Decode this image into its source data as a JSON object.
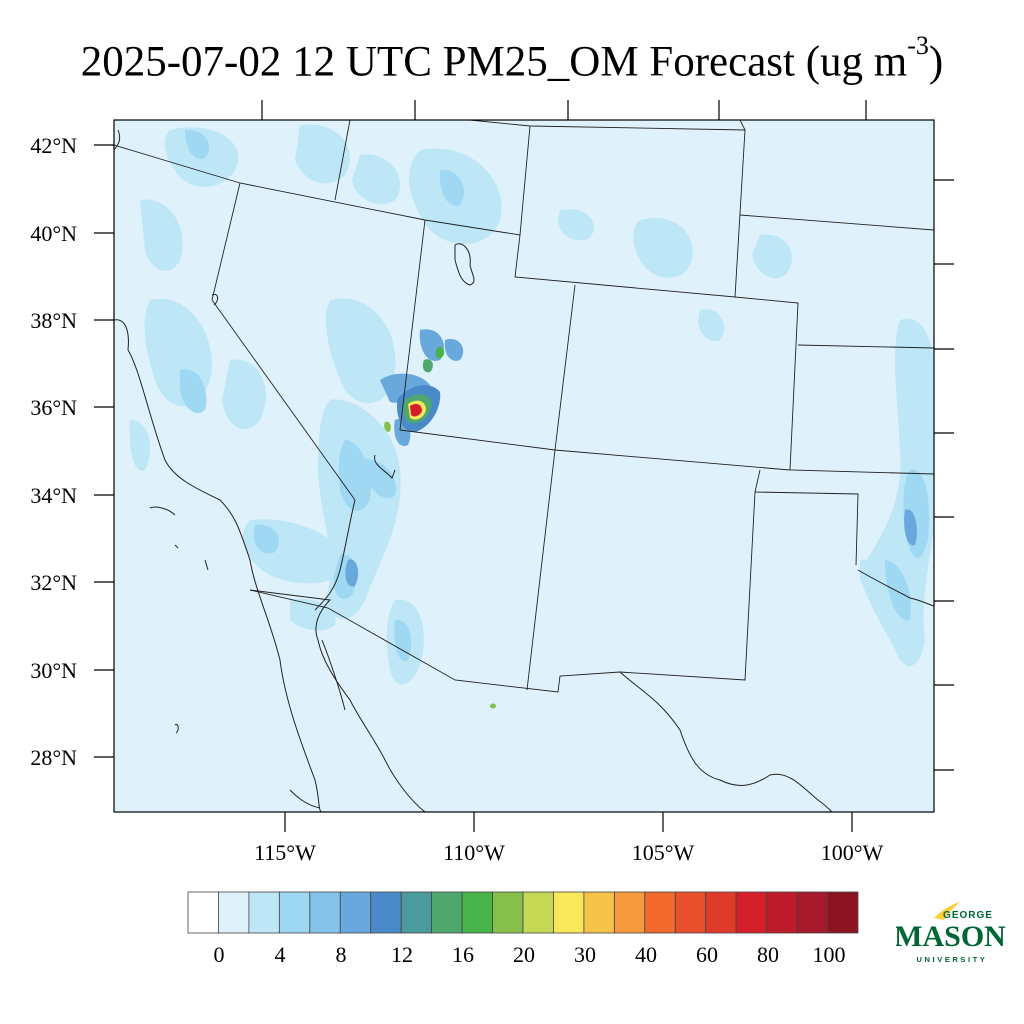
{
  "title": {
    "main": "2025-07-02 12 UTC PM25_OM Forecast (ug m",
    "superscript": "-3",
    "close": ")"
  },
  "lat_labels": [
    "42°N",
    "40°N",
    "38°N",
    "36°N",
    "34°N",
    "32°N",
    "30°N",
    "28°N"
  ],
  "lon_labels": [
    "115°W",
    "110°W",
    "105°W",
    "100°W"
  ],
  "colorbar": {
    "labels": [
      "0",
      "4",
      "8",
      "12",
      "16",
      "20",
      "30",
      "40",
      "60",
      "80",
      "100"
    ],
    "colors": [
      "#ffffff",
      "#dff2fb",
      "#bde6f6",
      "#9fd8f3",
      "#85c3ea",
      "#68a8dc",
      "#4a8ac9",
      "#4a9a9e",
      "#4ea86e",
      "#47b34a",
      "#86c04b",
      "#c4d854",
      "#f8e85a",
      "#f7c24a",
      "#f59b3d",
      "#f26a2e",
      "#e8502d",
      "#e03a2a",
      "#d41f2a",
      "#be1b2b",
      "#a6182a",
      "#8b1420"
    ]
  },
  "logo": {
    "line1": "GEORGE",
    "line2": "MASON",
    "line3": "UNIVERSITY",
    "colors": {
      "green": "#006633",
      "gold": "#ffcc33"
    }
  },
  "colors": {
    "background_field": "#dff2fb",
    "boundary": "#222222"
  }
}
